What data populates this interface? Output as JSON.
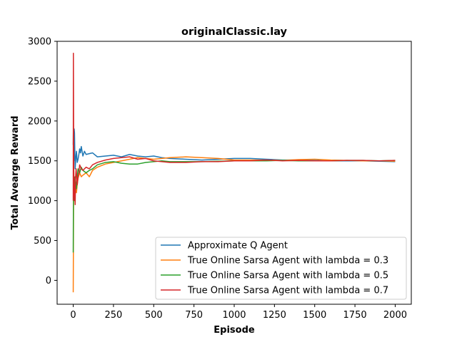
{
  "chart_data": {
    "type": "line",
    "title": "originalClassic.lay",
    "xlabel": "Episode",
    "ylabel": "Total Avearge Reward",
    "xlim": [
      -100,
      2100
    ],
    "ylim": [
      -300,
      3000
    ],
    "xticks": [
      0,
      250,
      500,
      750,
      1000,
      1250,
      1500,
      1750,
      2000
    ],
    "yticks": [
      0,
      500,
      1000,
      1500,
      2000,
      2500,
      3000
    ],
    "grid": false,
    "legend_position": "lower-right",
    "series": [
      {
        "name": "Approximate Q Agent",
        "color": "#1f77b4",
        "x": [
          0,
          1,
          2,
          3,
          4,
          5,
          6,
          8,
          10,
          12,
          15,
          18,
          20,
          25,
          30,
          35,
          40,
          45,
          50,
          60,
          70,
          80,
          100,
          120,
          150,
          200,
          250,
          300,
          350,
          400,
          450,
          500,
          550,
          600,
          700,
          800,
          900,
          1000,
          1100,
          1200,
          1300,
          1400,
          1500,
          1600,
          1700,
          1800,
          1900,
          2000
        ],
        "y": [
          1700,
          1880,
          1750,
          1600,
          1500,
          1780,
          1900,
          1850,
          1600,
          1400,
          1500,
          1580,
          1620,
          1480,
          1520,
          1580,
          1650,
          1600,
          1680,
          1560,
          1620,
          1580,
          1590,
          1600,
          1550,
          1560,
          1570,
          1550,
          1580,
          1560,
          1550,
          1560,
          1540,
          1530,
          1520,
          1510,
          1520,
          1530,
          1530,
          1520,
          1510,
          1510,
          1505,
          1500,
          1500,
          1500,
          1495,
          1490
        ]
      },
      {
        "name": "True Online Sarsa Agent with lambda = 0.3",
        "color": "#ff7f0e",
        "x": [
          0,
          1,
          2,
          3,
          4,
          5,
          7,
          10,
          12,
          15,
          20,
          25,
          30,
          40,
          50,
          60,
          80,
          100,
          120,
          150,
          200,
          250,
          300,
          350,
          400,
          500,
          600,
          700,
          800,
          900,
          1000,
          1100,
          1200,
          1300,
          1400,
          1500,
          1600,
          1700,
          1800,
          1900,
          2000
        ],
        "y": [
          -150,
          350,
          900,
          1500,
          1200,
          1000,
          1100,
          1050,
          1080,
          1150,
          1100,
          1200,
          1280,
          1350,
          1300,
          1320,
          1350,
          1300,
          1380,
          1420,
          1460,
          1480,
          1500,
          1520,
          1540,
          1520,
          1540,
          1550,
          1540,
          1530,
          1510,
          1510,
          1510,
          1505,
          1515,
          1520,
          1510,
          1505,
          1500,
          1500,
          1495
        ]
      },
      {
        "name": "True Online Sarsa Agent with lambda = 0.5",
        "color": "#2ca02c",
        "x": [
          0,
          1,
          2,
          3,
          4,
          5,
          7,
          10,
          12,
          15,
          20,
          25,
          30,
          40,
          50,
          60,
          80,
          100,
          120,
          150,
          200,
          250,
          300,
          350,
          400,
          450,
          500,
          550,
          600,
          700,
          800,
          900,
          1000,
          1100,
          1200,
          1300,
          1400,
          1500,
          1600,
          1700,
          1800,
          1900,
          2000
        ],
        "y": [
          350,
          850,
          1200,
          1500,
          1000,
          1100,
          1200,
          1100,
          1300,
          1250,
          1150,
          1300,
          1400,
          1350,
          1420,
          1380,
          1350,
          1380,
          1400,
          1450,
          1480,
          1490,
          1470,
          1460,
          1460,
          1480,
          1490,
          1500,
          1490,
          1490,
          1490,
          1495,
          1500,
          1500,
          1500,
          1505,
          1500,
          1500,
          1500,
          1505,
          1505,
          1500,
          1505
        ]
      },
      {
        "name": "True Online Sarsa Agent with lambda = 0.7",
        "color": "#d62728",
        "x": [
          0,
          1,
          2,
          3,
          4,
          5,
          6,
          8,
          10,
          12,
          15,
          18,
          20,
          25,
          30,
          35,
          40,
          50,
          60,
          80,
          100,
          120,
          150,
          200,
          250,
          300,
          350,
          400,
          450,
          500,
          550,
          600,
          700,
          800,
          900,
          1000,
          1100,
          1200,
          1300,
          1400,
          1500,
          1600,
          1700,
          1800,
          1900,
          2000
        ],
        "y": [
          1000,
          2850,
          2200,
          1500,
          1200,
          1050,
          1300,
          1000,
          1200,
          950,
          1300,
          1400,
          1350,
          1200,
          1300,
          1350,
          1450,
          1400,
          1380,
          1420,
          1400,
          1450,
          1480,
          1510,
          1530,
          1540,
          1550,
          1520,
          1530,
          1500,
          1490,
          1480,
          1480,
          1490,
          1490,
          1500,
          1500,
          1510,
          1500,
          1505,
          1500,
          1500,
          1505,
          1505,
          1500,
          1505
        ]
      }
    ]
  }
}
